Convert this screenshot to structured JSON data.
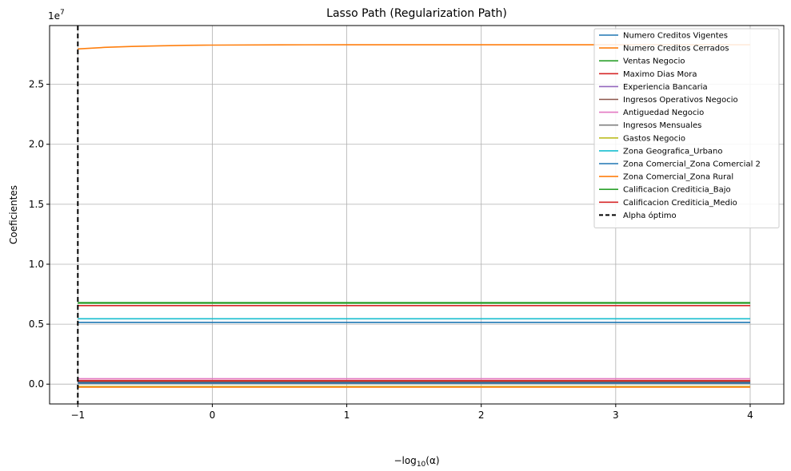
{
  "chart_data": {
    "type": "line",
    "title": "Lasso Path (Regularization Path)",
    "xlabel_prefix": "−log",
    "xlabel_sub": "10",
    "xlabel_suffix": "(α)",
    "ylabel": "Coeficientes",
    "y_multiplier": "1e7",
    "xlim": [
      -1.21,
      4.25
    ],
    "ylim": [
      -1650000,
      29900000
    ],
    "x_ticks": [
      -1,
      0,
      1,
      2,
      3,
      4
    ],
    "y_ticks": [
      0,
      5000000,
      10000000,
      15000000,
      20000000,
      25000000
    ],
    "y_tick_labels": [
      "0.0",
      "0.5",
      "1.0",
      "1.5",
      "2.0",
      "2.5"
    ],
    "grid": true,
    "legend_position": "top-right",
    "optimal_alpha_x": -1,
    "optimal_alpha_label": "Alpha óptimo",
    "x": [
      -1,
      -0.8,
      -0.6,
      -0.4,
      -0.2,
      0,
      0.5,
      1,
      1.5,
      2,
      2.5,
      3,
      3.5,
      4
    ],
    "series": [
      {
        "name": "Numero Creditos Vigentes",
        "color": "#1f77b4",
        "values": [
          5150000,
          5150000,
          5150000,
          5150000,
          5150000,
          5150000,
          5150000,
          5150000,
          5150000,
          5150000,
          5150000,
          5150000,
          5150000,
          5150000
        ]
      },
      {
        "name": "Numero Creditos Cerrados",
        "color": "#ff7f0e",
        "values": [
          27950000,
          28080000,
          28160000,
          28210000,
          28250000,
          28270000,
          28290000,
          28300000,
          28300000,
          28300000,
          28300000,
          28300000,
          28300000,
          28300000
        ]
      },
      {
        "name": "Ventas Negocio",
        "color": "#2ca02c",
        "values": [
          6800000,
          6800000,
          6800000,
          6800000,
          6800000,
          6800000,
          6800000,
          6800000,
          6800000,
          6800000,
          6800000,
          6800000,
          6800000,
          6800000
        ]
      },
      {
        "name": "Maximo Dias Mora",
        "color": "#d62728",
        "values": [
          6550000,
          6550000,
          6550000,
          6550000,
          6550000,
          6550000,
          6550000,
          6550000,
          6550000,
          6550000,
          6550000,
          6550000,
          6550000,
          6550000
        ]
      },
      {
        "name": "Experiencia Bancaria",
        "color": "#9467bd",
        "values": [
          150000,
          150000,
          150000,
          150000,
          150000,
          150000,
          150000,
          150000,
          150000,
          150000,
          150000,
          150000,
          150000,
          150000
        ]
      },
      {
        "name": "Ingresos Operativos Negocio",
        "color": "#8c564b",
        "values": [
          200000,
          200000,
          200000,
          200000,
          200000,
          200000,
          200000,
          200000,
          200000,
          200000,
          200000,
          200000,
          200000,
          200000
        ]
      },
      {
        "name": "Antiguedad Negocio",
        "color": "#e377c2",
        "values": [
          450000,
          450000,
          450000,
          450000,
          450000,
          450000,
          450000,
          450000,
          450000,
          450000,
          450000,
          450000,
          450000,
          450000
        ]
      },
      {
        "name": "Ingresos Mensuales",
        "color": "#7f7f7f",
        "values": [
          50000,
          50000,
          50000,
          50000,
          50000,
          50000,
          50000,
          50000,
          50000,
          50000,
          50000,
          50000,
          50000,
          50000
        ]
      },
      {
        "name": "Gastos Negocio",
        "color": "#bcbd22",
        "values": [
          -200000,
          -200000,
          -200000,
          -200000,
          -200000,
          -200000,
          -200000,
          -200000,
          -200000,
          -200000,
          -200000,
          -200000,
          -200000,
          -200000
        ]
      },
      {
        "name": "Zona Geografica_Urbano",
        "color": "#17becf",
        "values": [
          5450000,
          5450000,
          5450000,
          5450000,
          5450000,
          5450000,
          5450000,
          5450000,
          5450000,
          5450000,
          5450000,
          5450000,
          5450000,
          5450000
        ]
      },
      {
        "name": "Zona Comercial_Zona Comercial 2",
        "color": "#1f77b4",
        "values": [
          100000,
          100000,
          100000,
          100000,
          100000,
          100000,
          100000,
          100000,
          100000,
          100000,
          100000,
          100000,
          100000,
          100000
        ]
      },
      {
        "name": "Zona Comercial_Zona Rural",
        "color": "#ff7f0e",
        "values": [
          -250000,
          -250000,
          -250000,
          -250000,
          -250000,
          -250000,
          -250000,
          -250000,
          -250000,
          -250000,
          -250000,
          -250000,
          -250000,
          -250000
        ]
      },
      {
        "name": "Calificacion Crediticia_Bajo",
        "color": "#2ca02c",
        "values": [
          6750000,
          6750000,
          6750000,
          6750000,
          6750000,
          6750000,
          6750000,
          6750000,
          6750000,
          6750000,
          6750000,
          6750000,
          6750000,
          6750000
        ]
      },
      {
        "name": "Calificacion Crediticia_Medio",
        "color": "#d62728",
        "values": [
          300000,
          300000,
          300000,
          300000,
          300000,
          300000,
          300000,
          300000,
          300000,
          300000,
          300000,
          300000,
          300000,
          300000
        ]
      }
    ]
  }
}
